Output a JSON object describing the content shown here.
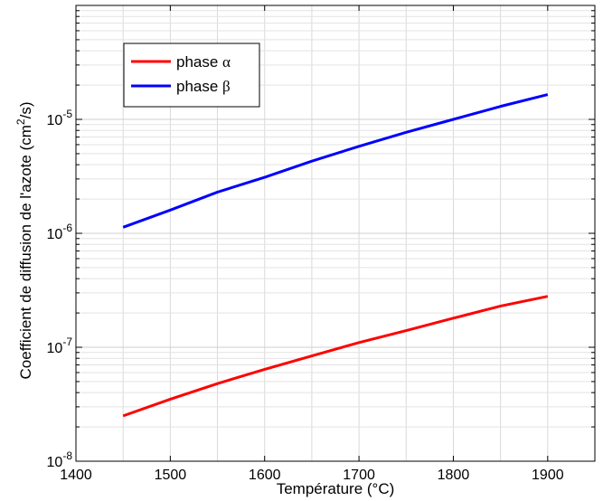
{
  "chart_data": {
    "type": "line",
    "title": "",
    "xlabel": "Température (°C)",
    "ylabel": "Coefficient de diffusion de l'azote (cm²/s)",
    "ylabel_parts": {
      "base": "Coefficient de diffusion de l'azote (cm",
      "sup": "2",
      "end": "/s)"
    },
    "xlim": [
      1400,
      1950
    ],
    "ylim": [
      1e-08,
      0.0001
    ],
    "yscale": "log",
    "grid": true,
    "legend_position": "top-left",
    "xticks": [
      1400,
      1500,
      1600,
      1700,
      1800,
      1900
    ],
    "xtick_labels": [
      "1400",
      "1500",
      "1600",
      "1700",
      "1800",
      "1900"
    ],
    "yticks": [
      {
        "value": 1e-08,
        "base": "10",
        "exp": "-8"
      },
      {
        "value": 1e-07,
        "base": "10",
        "exp": "-7"
      },
      {
        "value": 1e-06,
        "base": "10",
        "exp": "-6"
      },
      {
        "value": 1e-05,
        "base": "10",
        "exp": "-5"
      }
    ],
    "x": [
      1450,
      1500,
      1550,
      1600,
      1650,
      1700,
      1750,
      1800,
      1850,
      1900
    ],
    "series": [
      {
        "name": "phase α",
        "name_text": "phase ",
        "name_symbol": "α",
        "color": "#ff0000",
        "values": [
          2.5e-08,
          3.5e-08,
          4.8e-08,
          6.4e-08,
          8.4e-08,
          1.1e-07,
          1.4e-07,
          1.8e-07,
          2.3e-07,
          2.8e-07
        ]
      },
      {
        "name": "phase β",
        "name_text": "phase ",
        "name_symbol": "β",
        "color": "#0000ff",
        "values": [
          1.13e-06,
          1.6e-06,
          2.3e-06,
          3.1e-06,
          4.3e-06,
          5.8e-06,
          7.7e-06,
          1e-05,
          1.3e-05,
          1.65e-05
        ]
      }
    ]
  }
}
